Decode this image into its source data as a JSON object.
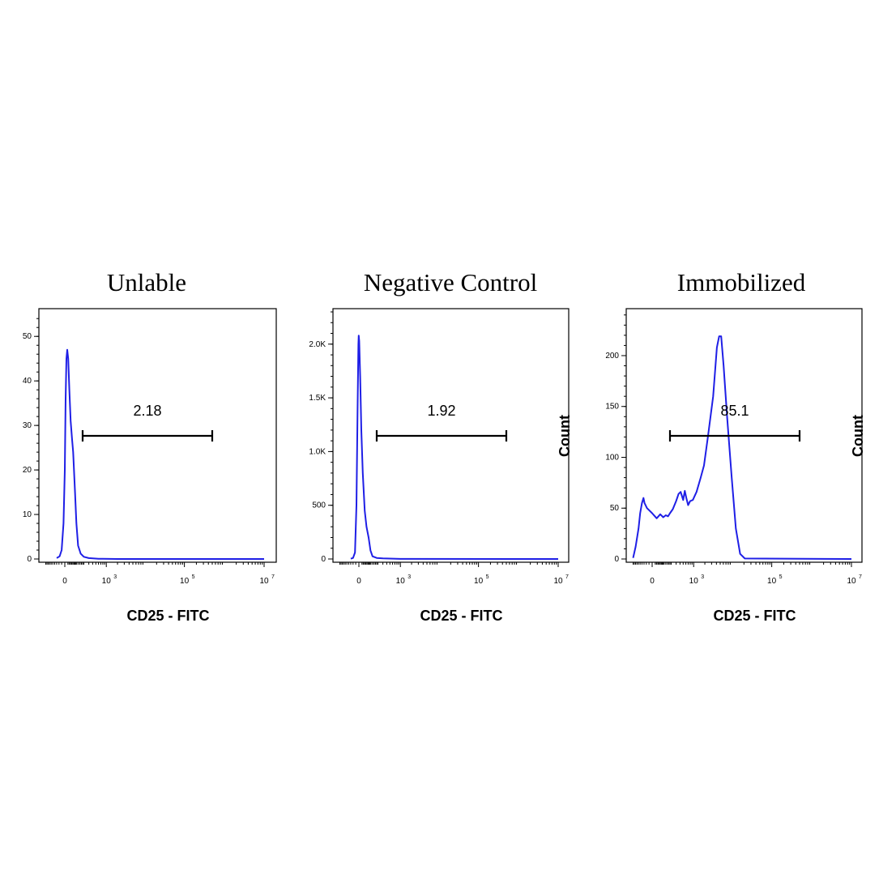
{
  "chart_data": [
    {
      "type": "line",
      "title": "Unlable",
      "xlabel": "CD25 - FITC",
      "ylabel": "",
      "x_scale": "biexponential",
      "x_ticks": [
        {
          "value": 0,
          "base": "0",
          "exp": ""
        },
        {
          "value": 1000,
          "base": "10",
          "exp": "3"
        },
        {
          "value": 100000,
          "base": "10",
          "exp": "5"
        },
        {
          "value": 10000000,
          "base": "10",
          "exp": "7"
        }
      ],
      "y_ticks": [
        {
          "value": 0,
          "label": "0"
        },
        {
          "value": 10,
          "label": "10"
        },
        {
          "value": 20,
          "label": "20"
        },
        {
          "value": 30,
          "label": "30"
        },
        {
          "value": 40,
          "label": "40"
        },
        {
          "value": 50,
          "label": "50"
        }
      ],
      "ylim": [
        0,
        55.5
      ],
      "series": [
        {
          "color": "#1f1fe6",
          "points": [
            [
              -60,
              0.2
            ],
            [
              -35,
              0.6
            ],
            [
              -20,
              2.0
            ],
            [
              -8,
              8
            ],
            [
              0,
              20
            ],
            [
              5,
              36
            ],
            [
              10,
              45
            ],
            [
              15,
              47
            ],
            [
              22,
              45
            ],
            [
              30,
              38
            ],
            [
              40,
              31
            ],
            [
              52,
              27
            ],
            [
              62,
              24
            ],
            [
              80,
              15
            ],
            [
              95,
              8
            ],
            [
              115,
              3
            ],
            [
              150,
              1.2
            ],
            [
              200,
              0.5
            ],
            [
              300,
              0.2
            ],
            [
              600,
              0.05
            ],
            [
              2000,
              0
            ],
            [
              10000000,
              0
            ]
          ]
        }
      ],
      "gate": {
        "label": "2.18",
        "x_start": 180,
        "x_end": 500000
      }
    },
    {
      "type": "line",
      "title": "Negative Control",
      "xlabel": "CD25 - FITC",
      "ylabel": "",
      "x_scale": "biexponential",
      "x_ticks": [
        {
          "value": 0,
          "base": "0",
          "exp": ""
        },
        {
          "value": 1000,
          "base": "10",
          "exp": "3"
        },
        {
          "value": 100000,
          "base": "10",
          "exp": "5"
        },
        {
          "value": 10000000,
          "base": "10",
          "exp": "7"
        }
      ],
      "y_ticks": [
        {
          "value": 0,
          "label": "0"
        },
        {
          "value": 500,
          "label": "500"
        },
        {
          "value": 1000,
          "label": "1.0K"
        },
        {
          "value": 1500,
          "label": "1.5K"
        },
        {
          "value": 2000,
          "label": "2.0K"
        }
      ],
      "ylim": [
        0,
        2300
      ],
      "series": [
        {
          "color": "#1f1fe6",
          "points": [
            [
              -60,
              2
            ],
            [
              -40,
              10
            ],
            [
              -25,
              60
            ],
            [
              -15,
              500
            ],
            [
              -8,
              1400
            ],
            [
              -3,
              2000
            ],
            [
              -1,
              2080
            ],
            [
              2,
              2030
            ],
            [
              8,
              1700
            ],
            [
              15,
              1200
            ],
            [
              25,
              800
            ],
            [
              40,
              450
            ],
            [
              55,
              300
            ],
            [
              75,
              200
            ],
            [
              95,
              80
            ],
            [
              120,
              25
            ],
            [
              180,
              10
            ],
            [
              300,
              5
            ],
            [
              1000,
              1
            ],
            [
              10000000,
              0
            ]
          ]
        }
      ],
      "gate": {
        "label": "1.92",
        "x_start": 180,
        "x_end": 500000
      }
    },
    {
      "type": "line",
      "title": "Immobilized",
      "xlabel": "CD25 - FITC",
      "ylabel": "Count",
      "x_scale": "biexponential",
      "x_ticks": [
        {
          "value": 0,
          "base": "0",
          "exp": ""
        },
        {
          "value": 1000,
          "base": "10",
          "exp": "3"
        },
        {
          "value": 100000,
          "base": "10",
          "exp": "5"
        },
        {
          "value": 10000000,
          "base": "10",
          "exp": "7"
        }
      ],
      "y_ticks": [
        {
          "value": 0,
          "label": "0"
        },
        {
          "value": 50,
          "label": "50"
        },
        {
          "value": 100,
          "label": "100"
        },
        {
          "value": 150,
          "label": "150"
        },
        {
          "value": 200,
          "label": "200"
        }
      ],
      "ylim": [
        0,
        243
      ],
      "series": [
        {
          "color": "#1f1fe6",
          "points": [
            [
              -200,
              1
            ],
            [
              -160,
              12
            ],
            [
              -120,
              30
            ],
            [
              -100,
              45
            ],
            [
              -80,
              55
            ],
            [
              -65,
              60
            ],
            [
              -55,
              55
            ],
            [
              -35,
              50
            ],
            [
              0,
              45
            ],
            [
              30,
              40
            ],
            [
              60,
              44
            ],
            [
              90,
              41
            ],
            [
              120,
              43
            ],
            [
              150,
              42
            ],
            [
              180,
              45
            ],
            [
              230,
              49
            ],
            [
              300,
              57
            ],
            [
              360,
              64
            ],
            [
              420,
              66
            ],
            [
              500,
              58
            ],
            [
              560,
              67
            ],
            [
              620,
              60
            ],
            [
              700,
              53
            ],
            [
              800,
              57
            ],
            [
              950,
              58
            ],
            [
              1200,
              66
            ],
            [
              1550,
              80
            ],
            [
              1900,
              92
            ],
            [
              2400,
              120
            ],
            [
              3300,
              160
            ],
            [
              4100,
              208
            ],
            [
              4700,
              219
            ],
            [
              5300,
              219
            ],
            [
              6100,
              190
            ],
            [
              7500,
              140
            ],
            [
              9800,
              80
            ],
            [
              12500,
              30
            ],
            [
              16000,
              5
            ],
            [
              21000,
              0.5
            ],
            [
              10000000,
              0
            ]
          ]
        }
      ],
      "gate": {
        "label": "85.1",
        "x_start": 180,
        "x_end": 500000
      }
    }
  ],
  "right_ylabels": [
    "Count",
    "Count"
  ]
}
